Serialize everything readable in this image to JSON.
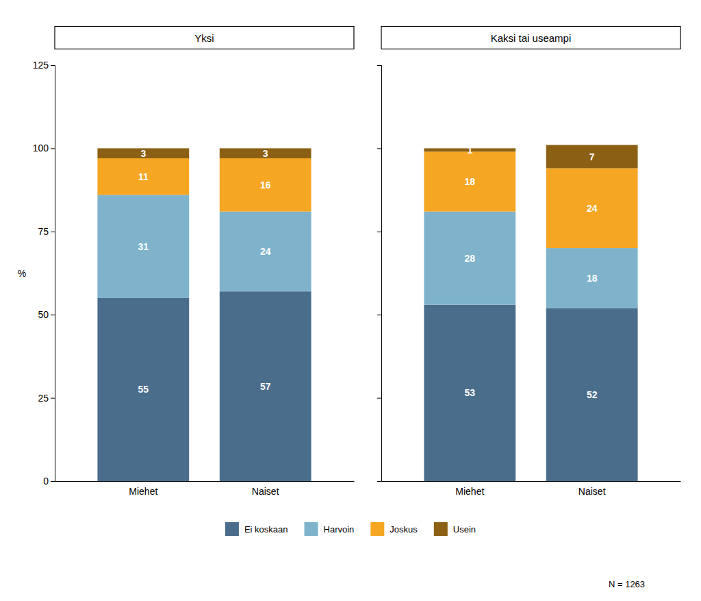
{
  "chart_data": [
    {
      "type": "bar",
      "stacked": true,
      "title": "Yksi",
      "ylabel": "%",
      "categories": [
        "Miehet",
        "Naiset"
      ],
      "series": [
        {
          "name": "Ei koskaan",
          "color": "#4a6d8c",
          "values": [
            55,
            57
          ]
        },
        {
          "name": "Harvoin",
          "color": "#7eb3cb",
          "values": [
            31,
            24
          ]
        },
        {
          "name": "Joskus",
          "color": "#f5a623",
          "values": [
            11,
            16
          ]
        },
        {
          "name": "Usein",
          "color": "#8b6014",
          "values": [
            3,
            3
          ]
        }
      ],
      "ylim": [
        0,
        125
      ],
      "yticks": [
        0,
        25,
        50,
        75,
        100,
        125
      ],
      "grid": false,
      "data_labels": true,
      "legend": "bottom"
    },
    {
      "type": "bar",
      "stacked": true,
      "title": "Kaksi tai useampi",
      "categories": [
        "Miehet",
        "Naiset"
      ],
      "series": [
        {
          "name": "Ei koskaan",
          "color": "#4a6d8c",
          "values": [
            53,
            52
          ]
        },
        {
          "name": "Harvoin",
          "color": "#7eb3cb",
          "values": [
            28,
            18
          ]
        },
        {
          "name": "Joskus",
          "color": "#f5a623",
          "values": [
            18,
            24
          ]
        },
        {
          "name": "Usein",
          "color": "#8b6014",
          "values": [
            1,
            7
          ]
        }
      ],
      "ylim": [
        0,
        125
      ],
      "yticks": [
        0,
        25,
        50,
        75,
        100,
        125
      ],
      "grid": false,
      "data_labels": true,
      "tick_labels": "x",
      "annotation": "N = 1263"
    }
  ]
}
